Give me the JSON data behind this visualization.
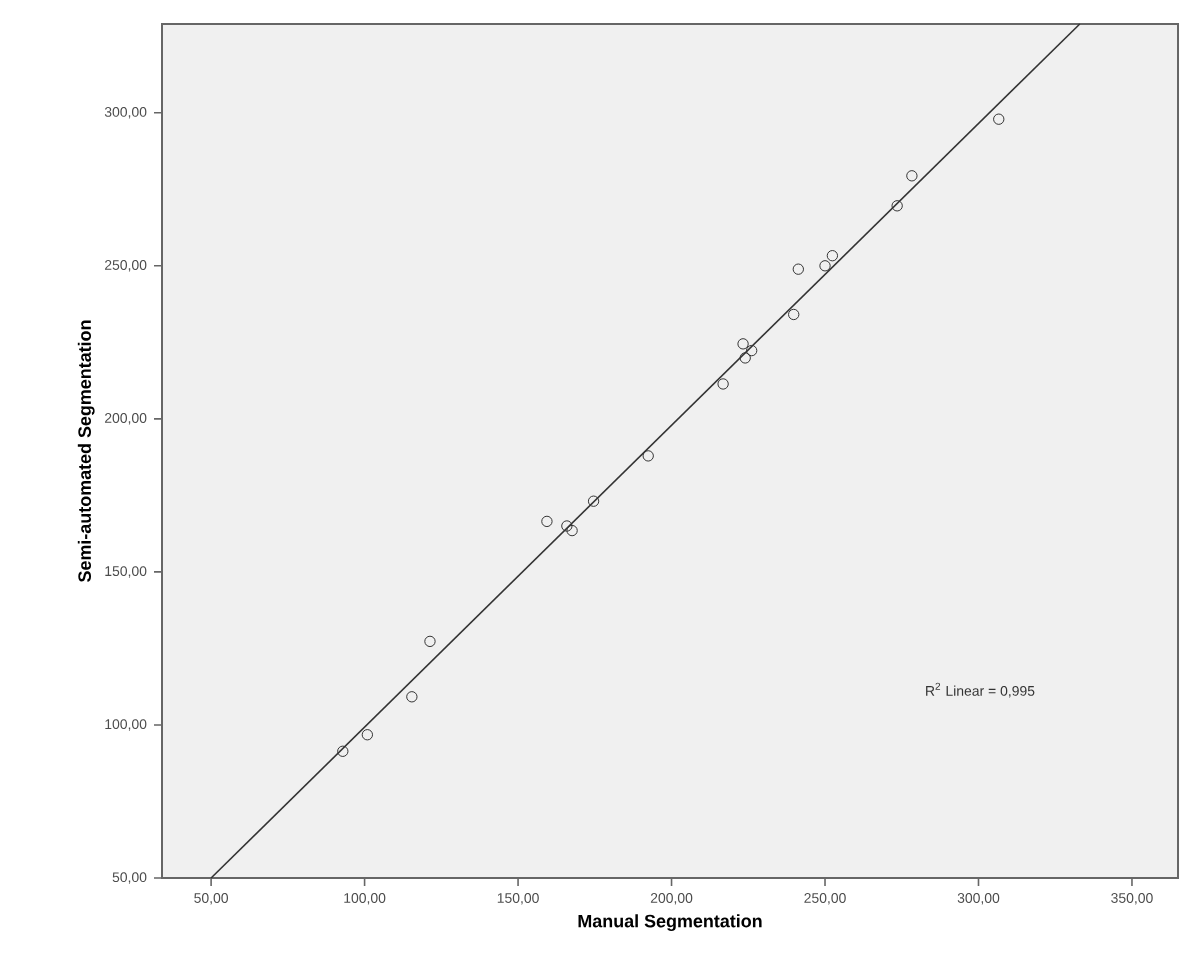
{
  "chart_data": {
    "type": "scatter",
    "xlabel": "Manual Segmentation",
    "ylabel": "Semi-automated Segmentation",
    "xlim": [
      34,
      365
    ],
    "ylim": [
      50,
      329
    ],
    "xticks": [
      {
        "value": 50,
        "label": "50,00"
      },
      {
        "value": 100,
        "label": "100,00"
      },
      {
        "value": 150,
        "label": "150,00"
      },
      {
        "value": 200,
        "label": "200,00"
      },
      {
        "value": 250,
        "label": "250,00"
      },
      {
        "value": 300,
        "label": "300,00"
      },
      {
        "value": 350,
        "label": "350,00"
      }
    ],
    "yticks": [
      {
        "value": 50,
        "label": "50,00"
      },
      {
        "value": 100,
        "label": "100,00"
      },
      {
        "value": 150,
        "label": "150,00"
      },
      {
        "value": 200,
        "label": "200,00"
      },
      {
        "value": 250,
        "label": "250,00"
      },
      {
        "value": 300,
        "label": "300,00"
      }
    ],
    "marker": "circle",
    "series": [
      {
        "color": "#333333",
        "x": [
          306.6,
          278.3,
          273.5,
          252.4,
          250.0,
          241.3,
          239.8,
          226.1,
          223.3,
          224.0,
          216.8,
          192.4,
          174.6,
          159.4,
          165.9,
          167.6,
          121.3,
          115.4,
          100.9,
          92.9
        ],
        "values": [
          297.9,
          279.4,
          269.6,
          253.3,
          250.0,
          248.9,
          234.1,
          222.3,
          224.5,
          219.9,
          211.4,
          187.9,
          173.1,
          166.5,
          165.0,
          163.5,
          127.3,
          109.2,
          96.8,
          91.4
        ]
      },
      {
        "type": "line",
        "color": "#333333",
        "marker": "none",
        "line_style": "solid",
        "x": [
          50,
          333
        ],
        "values": [
          50,
          329
        ]
      }
    ],
    "annotations": [
      "R$^{2}$ Linear = 0,995"
    ]
  }
}
